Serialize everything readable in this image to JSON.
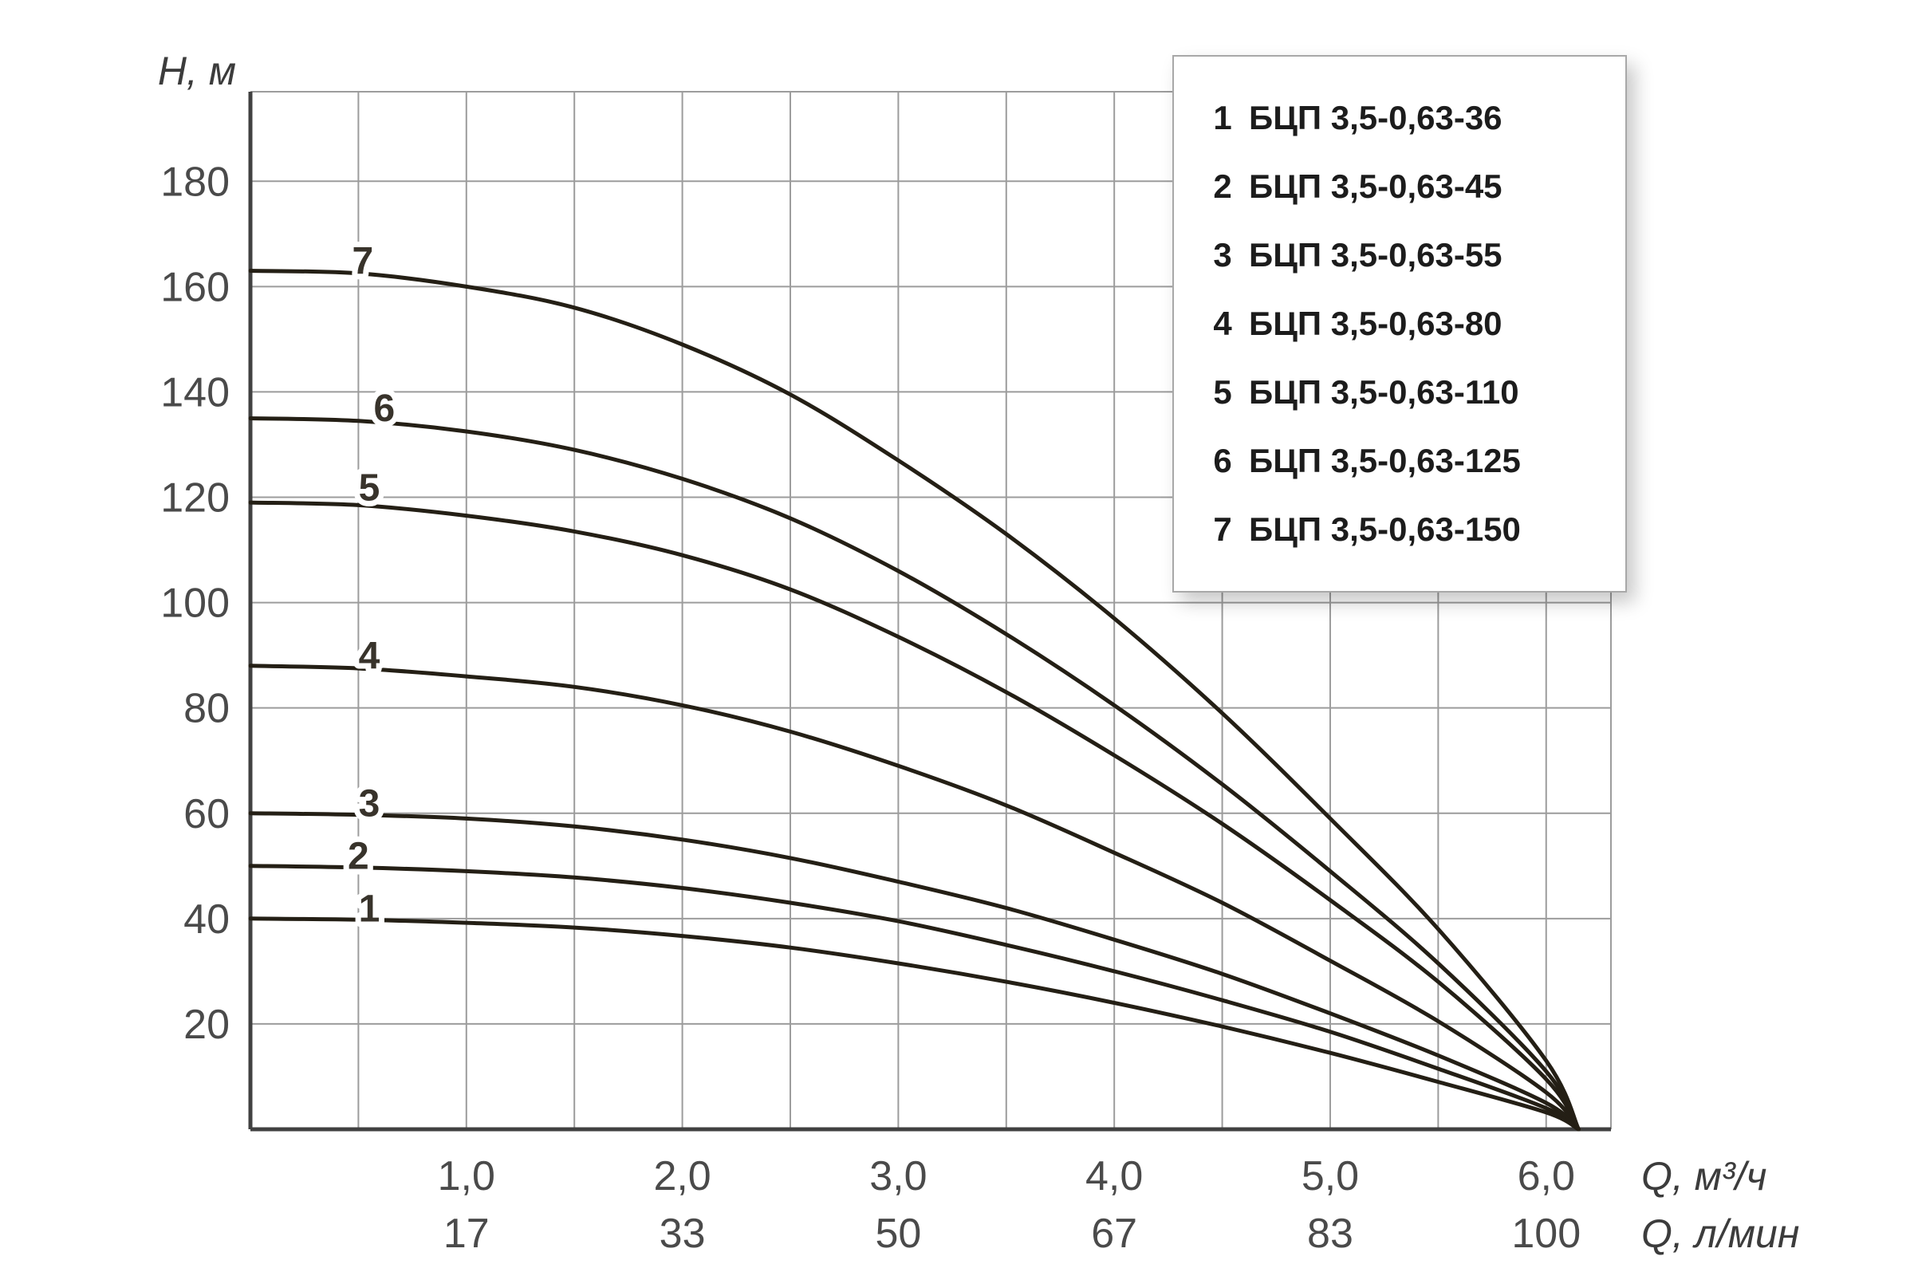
{
  "colors": {
    "background": "#ffffff",
    "curve": "#241f15",
    "grid": "#9c9c9c",
    "axis": "#414141",
    "tick_text": "#4a4a4a",
    "curve_label_text": "#38332b",
    "legend_border": "#a8a8a8",
    "legend_text": "#1c1c1c"
  },
  "chart_data": {
    "type": "line",
    "title": "",
    "ylabel": "H, м",
    "xlabel_primary": "Q, м³/ч",
    "xlabel_secondary": "Q, л/мин",
    "xlim": [
      0,
      6.3
    ],
    "ylim": [
      0,
      197
    ],
    "grid": {
      "on": true,
      "x_step": 0.5,
      "y_step": 20
    },
    "legend_position": "top-right",
    "y_ticks": [
      20,
      40,
      60,
      80,
      100,
      120,
      140,
      160,
      180
    ],
    "x_ticks": [
      {
        "x": 1,
        "m3h": "1,0",
        "lmin": "17"
      },
      {
        "x": 2,
        "m3h": "2,0",
        "lmin": "33"
      },
      {
        "x": 3,
        "m3h": "3,0",
        "lmin": "50"
      },
      {
        "x": 4,
        "m3h": "4,0",
        "lmin": "67"
      },
      {
        "x": 5,
        "m3h": "5,0",
        "lmin": "83"
      },
      {
        "x": 6,
        "m3h": "6,0",
        "lmin": "100"
      }
    ],
    "x": [
      0,
      0.5,
      1,
      1.5,
      2,
      2.5,
      3,
      3.5,
      4,
      4.5,
      5,
      5.5,
      6,
      6.15
    ],
    "series": [
      {
        "num": "1",
        "name": "БЦП 3,5-0,63-36",
        "values": [
          40,
          39.8,
          39.2,
          38.3,
          36.7,
          34.5,
          31.5,
          28,
          24,
          19.5,
          14.5,
          9,
          3.2,
          0
        ],
        "label_at": {
          "x": 0.55,
          "h": 42
        }
      },
      {
        "num": "2",
        "name": "БЦП 3,5-0,63-45",
        "values": [
          50,
          49.7,
          49,
          47.8,
          45.8,
          43,
          39.5,
          35,
          30,
          24.5,
          18.5,
          11.5,
          4,
          0
        ],
        "label_at": {
          "x": 0.5,
          "h": 52
        }
      },
      {
        "num": "3",
        "name": "БЦП 3,5-0,63-55",
        "values": [
          60,
          59.7,
          59,
          57.5,
          55,
          51.5,
          47,
          42,
          36,
          29.5,
          22,
          14,
          5,
          0
        ],
        "label_at": {
          "x": 0.55,
          "h": 62
        }
      },
      {
        "num": "4",
        "name": "БЦП 3,5-0,63-80",
        "values": [
          88,
          87.5,
          86,
          84,
          80.5,
          75.5,
          69,
          61.5,
          52.5,
          43,
          32,
          20.5,
          7,
          0
        ],
        "label_at": {
          "x": 0.55,
          "h": 90
        }
      },
      {
        "num": "5",
        "name": "БЦП 3,5-0,63-110",
        "values": [
          119,
          118.5,
          116.5,
          113.5,
          109,
          102.5,
          93.5,
          83,
          71,
          58,
          43.5,
          28,
          9.5,
          0
        ],
        "label_at": {
          "x": 0.55,
          "h": 122
        }
      },
      {
        "num": "6",
        "name": "БЦП 3,5-0,63-125",
        "values": [
          135,
          134.5,
          132.5,
          129,
          123.5,
          116,
          106,
          94,
          80.5,
          65.5,
          49,
          31.5,
          11,
          0
        ],
        "label_at": {
          "x": 0.62,
          "h": 137
        }
      },
      {
        "num": "7",
        "name": "БЦП 3,5-0,63-150",
        "values": [
          163,
          162.5,
          160,
          156,
          149,
          139.5,
          127,
          113,
          97,
          79,
          59,
          38,
          13,
          0
        ],
        "label_at": {
          "x": 0.52,
          "h": 165
        }
      }
    ]
  }
}
